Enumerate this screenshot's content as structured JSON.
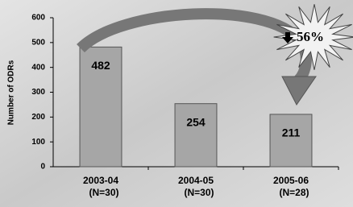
{
  "chart_data": {
    "type": "bar",
    "y_label": "Number of ODRs",
    "categories": [
      "2003-04",
      "2004-05",
      "2005-06"
    ],
    "category_notes": [
      "(N=30)",
      "(N=30)",
      "(N=28)"
    ],
    "values": [
      482,
      254,
      211
    ],
    "color": "#a6a6a6",
    "ylim": [
      0,
      600
    ],
    "yticks": [
      0,
      100,
      200,
      300,
      400,
      500,
      600
    ],
    "annotation": "56%"
  }
}
